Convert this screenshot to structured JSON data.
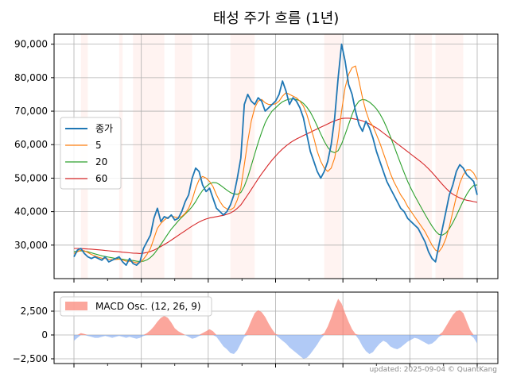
{
  "chart_data": [
    {
      "type": "line",
      "title": "태성 주가 흐름 (1년)",
      "ylim": [
        20000,
        93000
      ],
      "yticks": [
        30000,
        40000,
        50000,
        60000,
        70000,
        80000,
        90000
      ],
      "ytick_labels": [
        "30,000",
        "40,000",
        "50,000",
        "60,000",
        "70,000",
        "80,000",
        "90,000"
      ],
      "grid": true,
      "legend_position": "center-left",
      "x_period": "1 year (daily)",
      "series": [
        {
          "name": "종가",
          "color": "#1f77b4",
          "values": [
            26500,
            28500,
            29000,
            27500,
            26500,
            26000,
            26500,
            26000,
            25500,
            26500,
            25000,
            25500,
            26000,
            26500,
            25000,
            24000,
            26000,
            24500,
            24000,
            25000,
            29000,
            31000,
            33000,
            38000,
            41000,
            37000,
            38500,
            38000,
            39000,
            37500,
            38000,
            40000,
            43000,
            45000,
            50000,
            53000,
            52000,
            48000,
            46000,
            47000,
            44000,
            41000,
            40000,
            39000,
            40000,
            42000,
            45000,
            50000,
            56000,
            72000,
            75000,
            73000,
            72000,
            74000,
            73000,
            70000,
            71000,
            72000,
            73000,
            75000,
            79000,
            76000,
            72000,
            74000,
            73000,
            71000,
            68000,
            63000,
            58000,
            55000,
            52000,
            50000,
            52000,
            55000,
            60000,
            68000,
            80000,
            90000,
            85000,
            78000,
            75000,
            70000,
            66000,
            64000,
            67000,
            65000,
            62000,
            58000,
            55000,
            52000,
            49000,
            47000,
            45000,
            43000,
            41000,
            40000,
            38000,
            37000,
            36000,
            35000,
            33000,
            31000,
            28000,
            26000,
            25000,
            30000,
            35000,
            40000,
            45000,
            48000,
            52000,
            54000,
            53000,
            51000,
            50000,
            49000,
            45000
          ]
        },
        {
          "name": "5",
          "color": "#ff7f0e",
          "values": [
            27500,
            28000,
            28500,
            28300,
            27800,
            27200,
            26800,
            26400,
            26100,
            26000,
            25800,
            25700,
            25700,
            25800,
            25600,
            25200,
            25200,
            25000,
            24700,
            24800,
            25800,
            27200,
            29000,
            32000,
            35000,
            36500,
            37500,
            38300,
            38700,
            38400,
            38200,
            38500,
            39500,
            41000,
            43500,
            47000,
            49500,
            50500,
            50000,
            49000,
            47500,
            45000,
            43000,
            41500,
            40800,
            40500,
            41200,
            43500,
            47000,
            54000,
            61000,
            67000,
            71000,
            73000,
            73500,
            72500,
            72000,
            72000,
            72200,
            73000,
            74500,
            75500,
            75000,
            74500,
            74000,
            73000,
            71500,
            69000,
            65500,
            62000,
            58000,
            55000,
            53000,
            52000,
            53000,
            56000,
            62000,
            70000,
            77000,
            81000,
            83000,
            83500,
            79000,
            74000,
            70000,
            67000,
            65500,
            63000,
            60500,
            57500,
            54500,
            51500,
            49000,
            47000,
            45000,
            43500,
            41500,
            40000,
            38500,
            37000,
            35500,
            34000,
            32000,
            30000,
            28500,
            28000,
            29500,
            32000,
            35500,
            40000,
            44500,
            48500,
            51000,
            52500,
            52500,
            51500,
            49500
          ]
        },
        {
          "name": "20",
          "color": "#2ca02c",
          "values": [
            28000,
            28200,
            28300,
            28200,
            28000,
            27700,
            27400,
            27100,
            26800,
            26600,
            26400,
            26200,
            26000,
            25900,
            25800,
            25600,
            25500,
            25400,
            25200,
            25100,
            25200,
            25600,
            26300,
            27300,
            28700,
            30200,
            31700,
            33300,
            34800,
            36000,
            37200,
            38300,
            39300,
            40300,
            41500,
            43000,
            44800,
            46300,
            47500,
            48300,
            48700,
            48600,
            48000,
            47200,
            46400,
            45700,
            45300,
            45200,
            45700,
            47600,
            50300,
            53700,
            57200,
            60600,
            63700,
            66500,
            68500,
            70000,
            71000,
            72000,
            72800,
            73300,
            73600,
            73700,
            73500,
            73100,
            72300,
            71200,
            69700,
            67700,
            65500,
            63200,
            61000,
            59200,
            58000,
            57600,
            58200,
            60200,
            63000,
            66000,
            69000,
            71500,
            73000,
            73500,
            73300,
            72700,
            71800,
            70700,
            69200,
            67300,
            65000,
            62500,
            59800,
            57000,
            54300,
            51600,
            49000,
            46800,
            44800,
            42900,
            41000,
            39200,
            37400,
            35700,
            34200,
            33200,
            33000,
            33600,
            34900,
            36700,
            38800,
            41000,
            43200,
            45200,
            46800,
            47800,
            48000
          ]
        },
        {
          "name": "60",
          "color": "#d62728",
          "values": [
            29000,
            29000,
            28950,
            28900,
            28850,
            28800,
            28700,
            28600,
            28500,
            28400,
            28300,
            28200,
            28100,
            28000,
            27900,
            27800,
            27700,
            27600,
            27550,
            27500,
            27600,
            27800,
            28100,
            28500,
            29000,
            29600,
            30200,
            30800,
            31500,
            32200,
            32900,
            33600,
            34300,
            35000,
            35700,
            36300,
            36900,
            37400,
            37800,
            38100,
            38300,
            38500,
            38700,
            38900,
            39200,
            39600,
            40200,
            41000,
            42000,
            43500,
            45000,
            46600,
            48200,
            49800,
            51300,
            52700,
            54100,
            55400,
            56600,
            57700,
            58700,
            59600,
            60400,
            61100,
            61700,
            62200,
            62700,
            63200,
            63700,
            64200,
            64700,
            65200,
            65700,
            66200,
            66700,
            67100,
            67500,
            67800,
            67900,
            67900,
            67800,
            67600,
            67400,
            67100,
            66700,
            66200,
            65600,
            65000,
            64300,
            63500,
            62700,
            61900,
            61100,
            60300,
            59500,
            58700,
            57900,
            57100,
            56300,
            55500,
            54700,
            53800,
            52800,
            51700,
            50500,
            49300,
            48100,
            47000,
            46000,
            45200,
            44600,
            44100,
            43700,
            43400,
            43200,
            43000,
            42800
          ]
        }
      ],
      "shaded_spans_hint": "light red shaded date ranges"
    },
    {
      "type": "area",
      "ylim": [
        -3000,
        4500
      ],
      "yticks": [
        -2500,
        0,
        2500
      ],
      "ytick_labels": [
        "−2,500",
        "0",
        "2,500"
      ],
      "grid": true,
      "legend_position": "top-left",
      "series": [
        {
          "name": "MACD Osc. (12, 26, 9)",
          "pos_color": "#fa8072",
          "neg_color": "#6495ed",
          "values": [
            -600,
            -300,
            200,
            100,
            -100,
            -200,
            -300,
            -300,
            -200,
            -100,
            -200,
            -300,
            -200,
            -100,
            -200,
            -300,
            -200,
            -300,
            -400,
            -300,
            -100,
            200,
            500,
            900,
            1400,
            1800,
            2000,
            1800,
            1300,
            700,
            400,
            200,
            0,
            -200,
            -400,
            -300,
            -100,
            200,
            400,
            600,
            400,
            -200,
            -700,
            -1200,
            -1500,
            -1900,
            -2000,
            -1600,
            -900,
            -200,
            600,
            1500,
            2300,
            2600,
            2400,
            1900,
            1200,
            600,
            100,
            -300,
            -600,
            -900,
            -1300,
            -1600,
            -1900,
            -2200,
            -2500,
            -2400,
            -2000,
            -1500,
            -1000,
            -400,
            200,
            900,
            1800,
            2900,
            3800,
            3300,
            2300,
            1400,
            600,
            100,
            -500,
            -1200,
            -1700,
            -2000,
            -1800,
            -1300,
            -900,
            -600,
            -800,
            -1200,
            -1400,
            -1500,
            -1300,
            -1000,
            -700,
            -500,
            -300,
            -400,
            -600,
            -800,
            -1000,
            -900,
            -600,
            -200,
            300,
            900,
            1500,
            2100,
            2500,
            2600,
            2300,
            1400,
            500,
            -300,
            -900
          ]
        }
      ]
    }
  ],
  "footer": "updated: 2025-09-04 © QuantKang"
}
